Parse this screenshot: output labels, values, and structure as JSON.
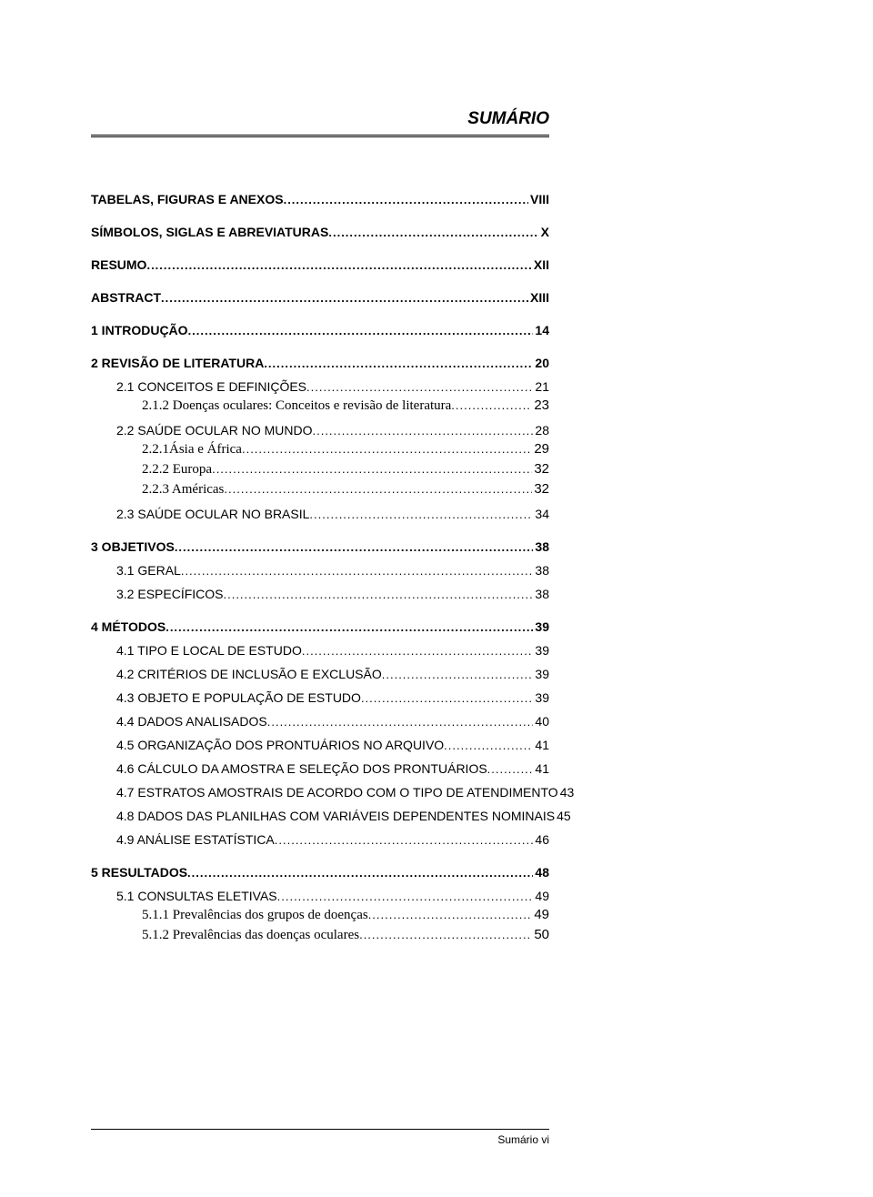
{
  "title": "SUMÁRIO",
  "footer": "Sumário vi",
  "entries": [
    {
      "label": "TABELAS, FIGURAS E ANEXOS",
      "page": "VIII",
      "level": 0,
      "bold": true,
      "gap": "none"
    },
    {
      "label": "SÍMBOLOS, SIGLAS E ABREVIATURAS",
      "page": "X",
      "level": 0,
      "bold": true,
      "gap": "lg"
    },
    {
      "label": "RESUMO",
      "page": "XII",
      "level": 0,
      "bold": true,
      "gap": "lg"
    },
    {
      "label": "ABSTRACT",
      "page": "XIII",
      "level": 0,
      "bold": true,
      "gap": "lg"
    },
    {
      "label": "1 INTRODUÇÃO",
      "page": "14",
      "level": 0,
      "bold": true,
      "gap": "lg"
    },
    {
      "label": "2 REVISÃO DE LITERATURA",
      "page": "20",
      "level": 0,
      "bold": true,
      "gap": "lg"
    },
    {
      "label": "2.1 CONCEITOS E DEFINIÇÕES",
      "page": "21",
      "level": 1,
      "bold": false,
      "gap": "md",
      "smallcaps": true
    },
    {
      "label": "2.1.2 Doenças oculares: Conceitos e revisão de literatura",
      "page": "23",
      "level": 2,
      "bold": false,
      "gap": "sm",
      "serif": true
    },
    {
      "label": "2.2 SAÚDE OCULAR NO MUNDO",
      "page": "28",
      "level": 1,
      "bold": false,
      "gap": "md",
      "smallcaps": true
    },
    {
      "label": "2.2.1Ásia e África",
      "page": "29",
      "level": 2,
      "bold": false,
      "gap": "sm",
      "serif": true
    },
    {
      "label": "2.2.2 Europa",
      "page": "32",
      "level": 2,
      "bold": false,
      "gap": "sm",
      "serif": true
    },
    {
      "label": "2.2.3 Américas",
      "page": "32",
      "level": 2,
      "bold": false,
      "gap": "sm",
      "serif": true
    },
    {
      "label": "2.3 SAÚDE OCULAR NO BRASIL",
      "page": "34",
      "level": 1,
      "bold": false,
      "gap": "md",
      "smallcaps": true
    },
    {
      "label": "3 OBJETIVOS",
      "page": "38",
      "level": 0,
      "bold": true,
      "gap": "lg"
    },
    {
      "label": "3.1 GERAL",
      "page": "38",
      "level": 1,
      "bold": false,
      "gap": "md",
      "smallcaps": true
    },
    {
      "label": "3.2 ESPECÍFICOS",
      "page": "38",
      "level": 1,
      "bold": false,
      "gap": "md",
      "smallcaps": true
    },
    {
      "label": "4 MÉTODOS",
      "page": "39",
      "level": 0,
      "bold": true,
      "gap": "lg"
    },
    {
      "label": "4.1 TIPO E LOCAL DE ESTUDO",
      "page": "39",
      "level": 1,
      "bold": false,
      "gap": "md",
      "smallcaps": true
    },
    {
      "label": "4.2 CRITÉRIOS DE INCLUSÃO E EXCLUSÃO",
      "page": "39",
      "level": 1,
      "bold": false,
      "gap": "md",
      "smallcaps": true
    },
    {
      "label": "4.3 OBJETO E POPULAÇÃO DE ESTUDO",
      "page": "39",
      "level": 1,
      "bold": false,
      "gap": "md",
      "smallcaps": true
    },
    {
      "label": "4.4 DADOS ANALISADOS",
      "page": "40",
      "level": 1,
      "bold": false,
      "gap": "md",
      "smallcaps": true
    },
    {
      "label": "4.5 ORGANIZAÇÃO DOS PRONTUÁRIOS NO ARQUIVO",
      "page": "41",
      "level": 1,
      "bold": false,
      "gap": "md",
      "smallcaps": true
    },
    {
      "label": "4.6 CÁLCULO DA AMOSTRA E SELEÇÃO DOS PRONTUÁRIOS",
      "page": "41",
      "level": 1,
      "bold": false,
      "gap": "md",
      "smallcaps": true
    },
    {
      "label": "4.7 ESTRATOS AMOSTRAIS DE ACORDO COM O TIPO DE ATENDIMENTO",
      "page": "43",
      "level": 1,
      "bold": false,
      "gap": "md",
      "smallcaps": true
    },
    {
      "label": "4.8 DADOS DAS PLANILHAS COM VARIÁVEIS DEPENDENTES NOMINAIS",
      "page": "45",
      "level": 1,
      "bold": false,
      "gap": "md",
      "smallcaps": true
    },
    {
      "label": "4.9 ANÁLISE ESTATÍSTICA",
      "page": "46",
      "level": 1,
      "bold": false,
      "gap": "md",
      "smallcaps": true
    },
    {
      "label": "5 RESULTADOS",
      "page": "48",
      "level": 0,
      "bold": true,
      "gap": "lg"
    },
    {
      "label": "5.1 CONSULTAS ELETIVAS",
      "page": "49",
      "level": 1,
      "bold": false,
      "gap": "md",
      "smallcaps": true
    },
    {
      "label": "5.1.1 Prevalências dos grupos de doenças",
      "page": "49",
      "level": 2,
      "bold": false,
      "gap": "sm",
      "serif": true
    },
    {
      "label": "5.1.2 Prevalências das doenças oculares",
      "page": "50",
      "level": 2,
      "bold": false,
      "gap": "sm",
      "serif": true
    }
  ]
}
